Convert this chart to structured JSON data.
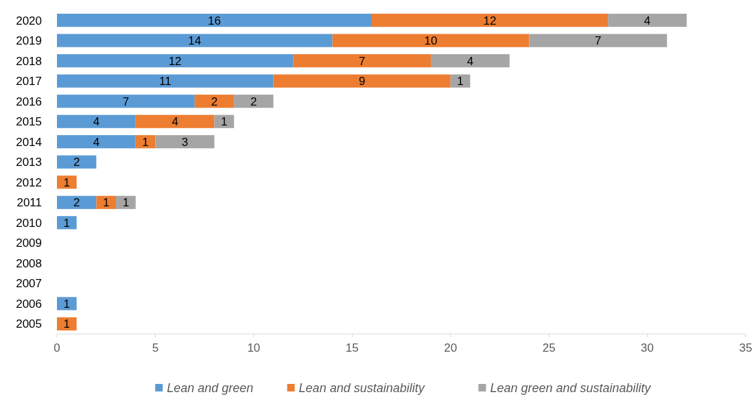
{
  "chart_data": {
    "type": "bar",
    "orientation": "horizontal",
    "stacked": true,
    "categories": [
      "2020",
      "2019",
      "2018",
      "2017",
      "2016",
      "2015",
      "2014",
      "2013",
      "2012",
      "2011",
      "2010",
      "2009",
      "2008",
      "2007",
      "2006",
      "2005"
    ],
    "series": [
      {
        "name": "Lean and green",
        "color": "#5b9bd5",
        "values": [
          16,
          14,
          12,
          11,
          7,
          4,
          4,
          2,
          null,
          2,
          1,
          null,
          null,
          null,
          1,
          null
        ]
      },
      {
        "name": "Lean and sustainability",
        "color": "#ed7d31",
        "values": [
          12,
          10,
          7,
          9,
          2,
          4,
          1,
          null,
          1,
          1,
          null,
          null,
          null,
          null,
          null,
          1
        ]
      },
      {
        "name": "Lean green and sustainability",
        "color": "#a5a5a5",
        "values": [
          4,
          7,
          4,
          1,
          2,
          1,
          3,
          null,
          null,
          1,
          null,
          null,
          null,
          null,
          null,
          null
        ]
      }
    ],
    "xlim": [
      0,
      35
    ],
    "xticks": [
      0,
      5,
      10,
      15,
      20,
      25,
      30,
      35
    ],
    "data_labels": true,
    "legend": "bottom"
  }
}
